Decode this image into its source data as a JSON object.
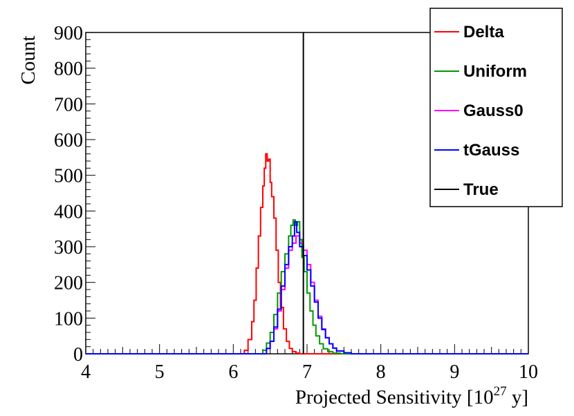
{
  "chart_data": {
    "type": "line",
    "style": "step-histogram",
    "title": "",
    "xlabel": "Projected Sensitivity [10",
    "xlabel_sup": "27",
    "xlabel_suffix": " y]",
    "ylabel": "Count",
    "xlim": [
      4,
      10
    ],
    "ylim": [
      0,
      900
    ],
    "x_ticks": [
      "4",
      "5",
      "6",
      "7",
      "8",
      "9",
      "10"
    ],
    "y_ticks": [
      "0",
      "100",
      "200",
      "300",
      "400",
      "500",
      "600",
      "700",
      "800",
      "900"
    ],
    "grid": false,
    "legend_position": "top-right",
    "series": [
      {
        "name": "Delta",
        "color": "#ff0000",
        "x": [
          6.1,
          6.15,
          6.2,
          6.25,
          6.28,
          6.31,
          6.34,
          6.37,
          6.4,
          6.42,
          6.44,
          6.46,
          6.48,
          6.5,
          6.52,
          6.55,
          6.58,
          6.61,
          6.64,
          6.68,
          6.72,
          6.76,
          6.8,
          6.85,
          6.9
        ],
        "y": [
          0,
          10,
          40,
          90,
          150,
          240,
          330,
          410,
          470,
          520,
          560,
          540,
          545,
          480,
          440,
          380,
          290,
          200,
          130,
          70,
          35,
          15,
          6,
          2,
          0
        ]
      },
      {
        "name": "Uniform",
        "color": "#009900",
        "x": [
          6.3,
          6.4,
          6.45,
          6.5,
          6.55,
          6.6,
          6.65,
          6.7,
          6.75,
          6.78,
          6.81,
          6.84,
          6.87,
          6.9,
          6.93,
          6.96,
          7.0,
          7.04,
          7.08,
          7.12,
          7.17,
          7.22,
          7.28,
          7.35,
          7.45
        ],
        "y": [
          0,
          10,
          30,
          60,
          110,
          170,
          230,
          280,
          330,
          360,
          375,
          360,
          370,
          320,
          270,
          230,
          170,
          120,
          80,
          50,
          28,
          14,
          6,
          2,
          0
        ]
      },
      {
        "name": "Gauss0",
        "color": "#ff00ff",
        "x": [
          6.35,
          6.45,
          6.5,
          6.55,
          6.6,
          6.65,
          6.7,
          6.75,
          6.8,
          6.85,
          6.9,
          6.95,
          7.0,
          7.05,
          7.1,
          7.15,
          7.2,
          7.25,
          7.3,
          7.35,
          7.4,
          7.5,
          7.6
        ],
        "y": [
          0,
          15,
          35,
          70,
          120,
          180,
          240,
          290,
          310,
          330,
          310,
          290,
          250,
          200,
          150,
          105,
          70,
          45,
          28,
          16,
          8,
          3,
          0
        ]
      },
      {
        "name": "tGauss",
        "color": "#0000ff",
        "x": [
          6.35,
          6.45,
          6.5,
          6.55,
          6.6,
          6.65,
          6.7,
          6.75,
          6.8,
          6.83,
          6.86,
          6.9,
          6.95,
          7.0,
          7.05,
          7.1,
          7.15,
          7.2,
          7.25,
          7.3,
          7.35,
          7.4,
          7.5,
          7.6
        ],
        "y": [
          0,
          15,
          35,
          75,
          125,
          190,
          250,
          300,
          330,
          370,
          340,
          300,
          275,
          235,
          190,
          145,
          100,
          68,
          45,
          28,
          16,
          8,
          3,
          0
        ]
      }
    ],
    "reference_line": {
      "name": "True",
      "x": 6.95,
      "color": "#000000"
    }
  }
}
